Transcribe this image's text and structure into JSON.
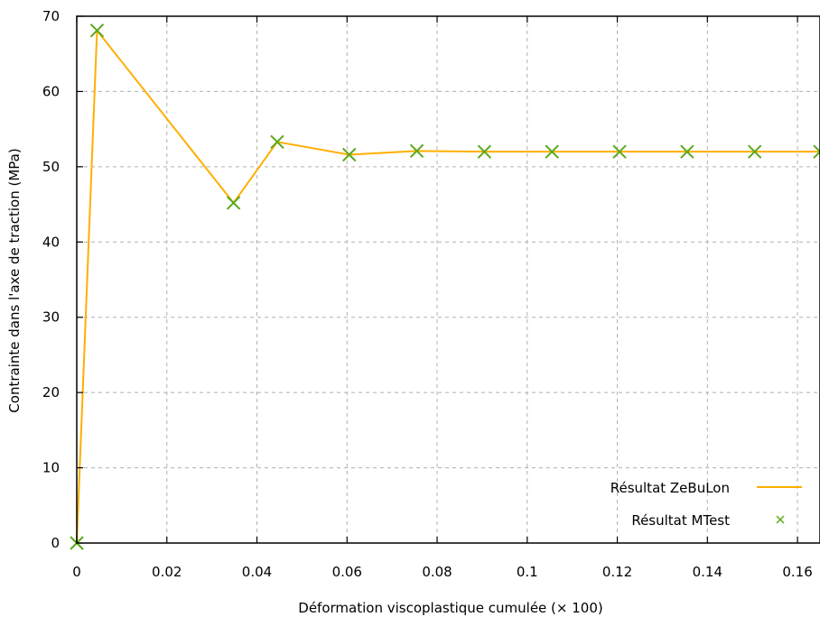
{
  "chart_data": {
    "type": "line",
    "title": "",
    "xlabel": "Déformation viscoplastique cumulée (× 100)",
    "ylabel": "Contrainte dans l'axe de traction (MPa)",
    "xlim": [
      0,
      0.165
    ],
    "ylim": [
      0,
      70
    ],
    "x_ticks": [
      0,
      0.02,
      0.04,
      0.06,
      0.08,
      0.1,
      0.12,
      0.14,
      0.16
    ],
    "x_tick_labels": [
      "0",
      "0.02",
      "0.04",
      "0.06",
      "0.08",
      "0.1",
      "0.12",
      "0.14",
      "0.16"
    ],
    "y_ticks": [
      0,
      10,
      20,
      30,
      40,
      50,
      60,
      70
    ],
    "y_tick_labels": [
      "0",
      "10",
      "20",
      "30",
      "40",
      "50",
      "60",
      "70"
    ],
    "grid": true,
    "legend_position": "bottom-right",
    "series": [
      {
        "name": "Résultat ZeBuLon",
        "style": "line",
        "color": "#ffaf00",
        "x": [
          0,
          0.0045,
          0.0348,
          0.0445,
          0.0605,
          0.0755,
          0.0905,
          0.1055,
          0.1205,
          0.1355,
          0.1505,
          0.165
        ],
        "y": [
          0,
          68.1,
          45.2,
          53.3,
          51.6,
          52.1,
          52.0,
          52.0,
          52.0,
          52.0,
          52.0,
          52.0
        ]
      },
      {
        "name": "Résultat MTest",
        "style": "markers",
        "marker": "x",
        "color": "#5aa91c",
        "x": [
          0,
          0.0045,
          0.0348,
          0.0445,
          0.0605,
          0.0755,
          0.0905,
          0.1055,
          0.1205,
          0.1355,
          0.1505,
          0.165
        ],
        "y": [
          0,
          68.1,
          45.2,
          53.3,
          51.6,
          52.1,
          52.0,
          52.0,
          52.0,
          52.0,
          52.0,
          52.0
        ]
      }
    ]
  }
}
